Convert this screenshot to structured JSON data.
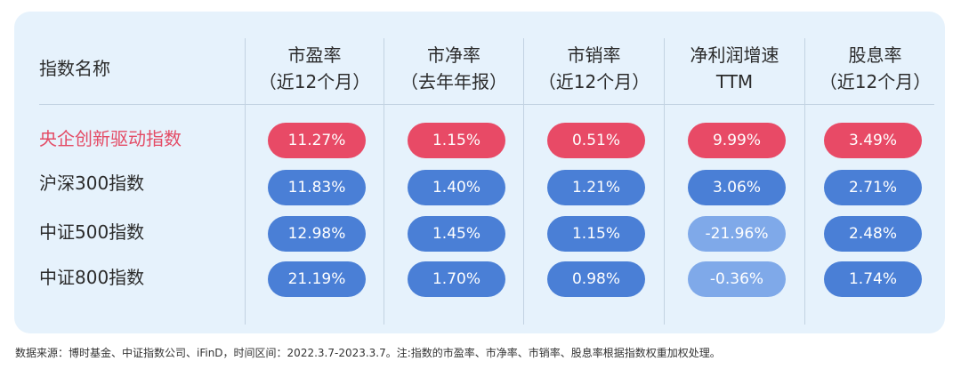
{
  "chart_data": {
    "type": "table",
    "header": {
      "name": "指数名称",
      "columns": [
        {
          "line1": "市盈率",
          "line2": "（近12个月）"
        },
        {
          "line1": "市净率",
          "line2": "（去年年报）"
        },
        {
          "line1": "市销率",
          "line2": "（近12个月）"
        },
        {
          "line1": "净利润增速",
          "line2": "TTM"
        },
        {
          "line1": "股息率",
          "line2": "（近12个月）"
        }
      ]
    },
    "rows": [
      {
        "name": "央企创新驱动指数",
        "values": [
          "11.27%",
          "1.15%",
          "0.51%",
          "9.99%",
          "3.49%"
        ]
      },
      {
        "name": "沪深300指数",
        "values": [
          "11.83%",
          "1.40%",
          "1.21%",
          "3.06%",
          "2.71%"
        ]
      },
      {
        "name": "中证500指数",
        "values": [
          "12.98%",
          "1.45%",
          "1.15%",
          "-21.96%",
          "2.48%"
        ]
      },
      {
        "name": "中证800指数",
        "values": [
          "21.19%",
          "1.70%",
          "0.98%",
          "-0.36%",
          "1.74%"
        ]
      }
    ],
    "colors": {
      "highlight": "#e84a66",
      "positive": "#4a7fd6",
      "negative": "#7fa9e9",
      "highlight_text": "#e44c66"
    }
  },
  "footnote": "数据来源：博时基金、中证指数公司、iFinD，时间区间：2022.3.7-2023.3.7。注:指数的市盈率、市净率、市销率、股息率根据指数权重加权处理。"
}
